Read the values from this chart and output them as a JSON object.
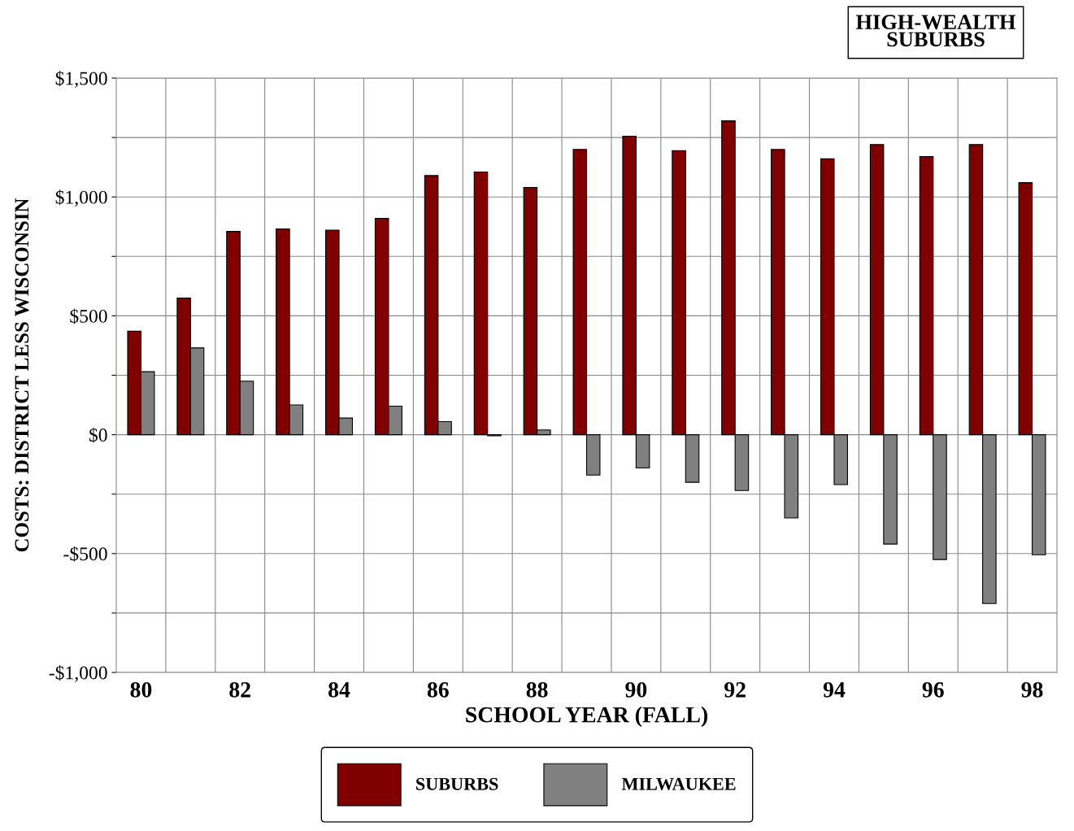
{
  "chart_data": {
    "type": "bar",
    "title": "HIGH-WEALTH\nSUBURBS",
    "xlabel": "SCHOOL YEAR (FALL)",
    "ylabel": "COSTS: DISTRICT LESS WISCONSIN",
    "categories": [
      "80",
      null,
      "82",
      null,
      "84",
      null,
      "86",
      null,
      "88",
      null,
      "90",
      null,
      "92",
      null,
      "94",
      null,
      "96",
      null,
      "98"
    ],
    "series": [
      {
        "name": "SUBURBS",
        "color": "#800000",
        "values": [
          435,
          575,
          855,
          865,
          860,
          910,
          1090,
          1105,
          1040,
          1200,
          1255,
          1195,
          1320,
          1200,
          1160,
          1220,
          1170,
          1220,
          1060
        ]
      },
      {
        "name": "MILWAUKEE",
        "color": "#808080",
        "values": [
          265,
          365,
          225,
          125,
          70,
          120,
          55,
          -5,
          20,
          -170,
          -140,
          -200,
          -235,
          -350,
          -210,
          -460,
          -525,
          -710,
          -505
        ]
      }
    ],
    "ylim": [
      -1000,
      1500
    ],
    "yticks": [
      {
        "value": -1000,
        "label": "-$1,000"
      },
      {
        "value": -750,
        "label": null
      },
      {
        "value": -500,
        "label": "-$500"
      },
      {
        "value": -250,
        "label": null
      },
      {
        "value": 0,
        "label": "$0"
      },
      {
        "value": 250,
        "label": null
      },
      {
        "value": 500,
        "label": "$500"
      },
      {
        "value": 750,
        "label": null
      },
      {
        "value": 1000,
        "label": "$1,000"
      },
      {
        "value": 1250,
        "label": null
      },
      {
        "value": 1500,
        "label": "$1,500"
      }
    ],
    "grid": true,
    "legend": "bottom"
  }
}
